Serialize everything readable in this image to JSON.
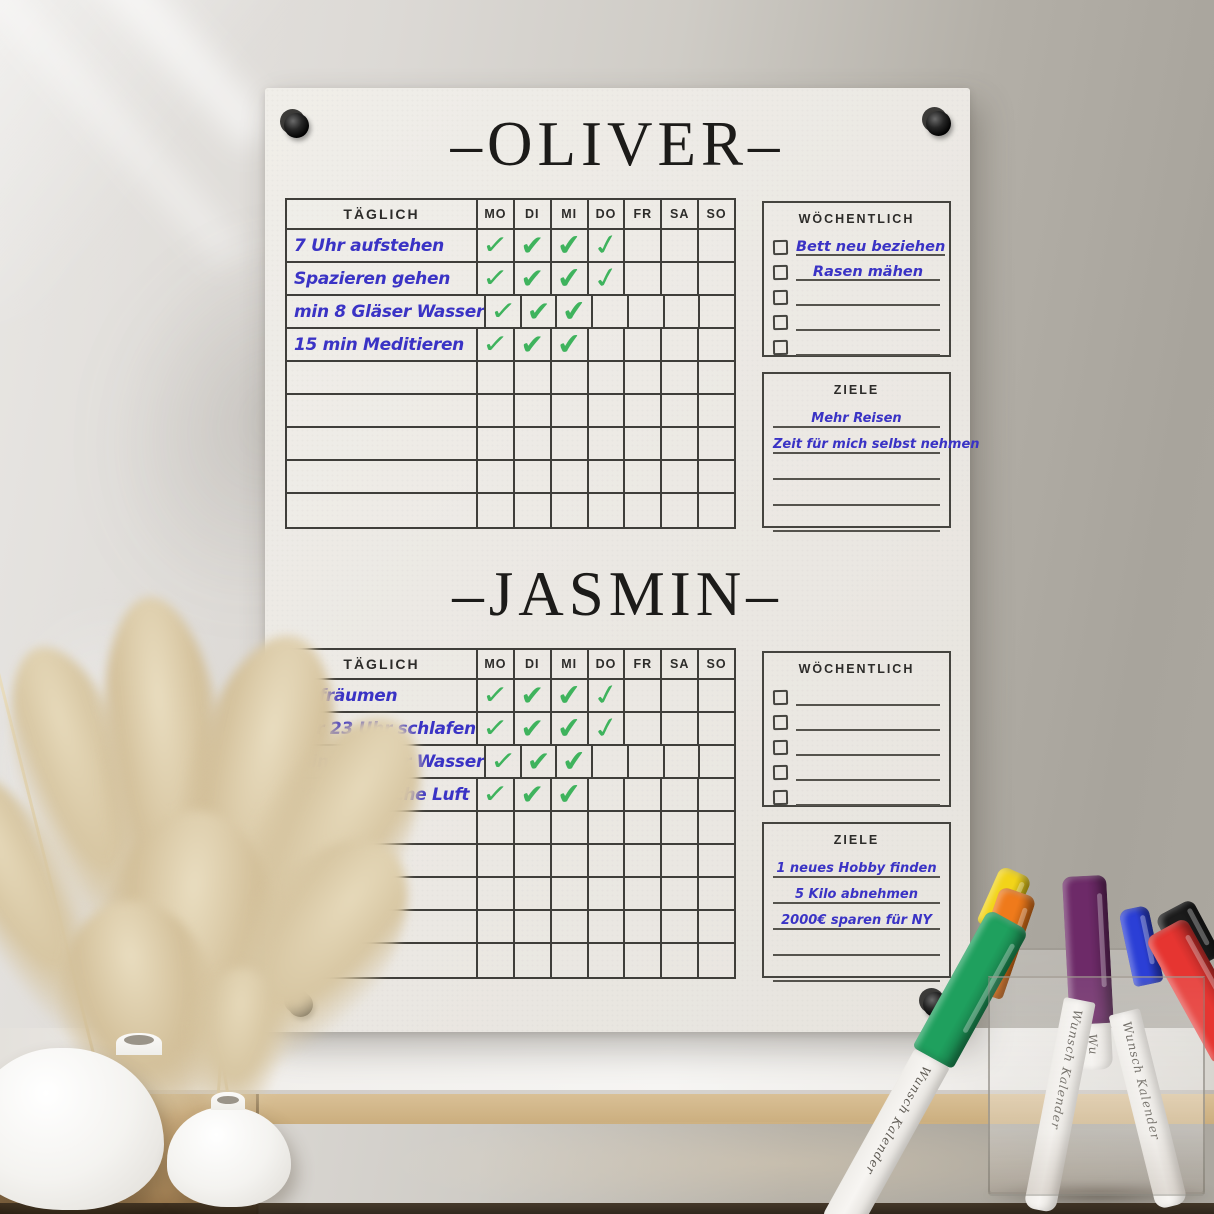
{
  "board": {
    "sections": [
      {
        "id": "oliver",
        "title": "–OLIVER–",
        "daily": {
          "header": "TÄGLICH",
          "days": [
            "MO",
            "DI",
            "MI",
            "DO",
            "FR",
            "SA",
            "SO"
          ],
          "rows": [
            {
              "task": "7 Uhr aufstehen",
              "checks": [
                1,
                1,
                1,
                1,
                0,
                0,
                0
              ]
            },
            {
              "task": "Spazieren gehen",
              "checks": [
                1,
                1,
                1,
                1,
                0,
                0,
                0
              ]
            },
            {
              "task": "min 8 Gläser Wasser",
              "checks": [
                1,
                1,
                1,
                0,
                0,
                0,
                0
              ]
            },
            {
              "task": "15 min Meditieren",
              "checks": [
                1,
                1,
                1,
                0,
                0,
                0,
                0
              ]
            }
          ],
          "empty_rows": 5
        },
        "weekly": {
          "title": "WÖCHENTLICH",
          "items": [
            "Bett neu beziehen",
            "Rasen mähen",
            "",
            "",
            ""
          ]
        },
        "goals": {
          "title": "ZIELE",
          "items": [
            "Mehr Reisen",
            "Zeit für mich selbst nehmen",
            "",
            "",
            ""
          ]
        }
      },
      {
        "id": "jasmin",
        "title": "–JASMIN–",
        "daily": {
          "header": "TÄGLICH",
          "days": [
            "MO",
            "DI",
            "MI",
            "DO",
            "FR",
            "SA",
            "SO"
          ],
          "rows": [
            {
              "task": "Aufräumen",
              "checks": [
                1,
                1,
                1,
                1,
                0,
                0,
                0
              ]
            },
            {
              "task": "vor 23 Uhr schlafen",
              "checks": [
                1,
                1,
                1,
                1,
                0,
                0,
                0
              ]
            },
            {
              "task": "min 8 Gläser Wasser",
              "checks": [
                1,
                1,
                1,
                0,
                0,
                0,
                0
              ]
            },
            {
              "task": "30 min frische Luft",
              "checks": [
                1,
                1,
                1,
                0,
                0,
                0,
                0
              ]
            }
          ],
          "empty_rows": 5
        },
        "weekly": {
          "title": "WÖCHENTLICH",
          "items": [
            "",
            "",
            "",
            "",
            ""
          ]
        },
        "goals": {
          "title": "ZIELE",
          "items": [
            "1 neues Hobby finden",
            "5 Kilo abnehmen",
            "2000€ sparen für NY",
            "",
            ""
          ]
        }
      }
    ]
  },
  "colors": {
    "handwriting_blue": "#3a33c5",
    "check_green": "#3fb35d",
    "table_line": "#3f3e3a",
    "title_black": "#1c1b19"
  },
  "decor": {
    "marker_label": "Wunsch Kalender",
    "markers": [
      {
        "name": "yellow-marker",
        "cap": "#f2d419"
      },
      {
        "name": "orange-marker",
        "cap": "#ef7a1b"
      },
      {
        "name": "purple-marker",
        "cap": "#6d2a68"
      },
      {
        "name": "blue-marker",
        "cap": "#2b3fd6"
      },
      {
        "name": "black-marker",
        "cap": "#1c1c1c"
      },
      {
        "name": "green-marker",
        "cap": "#1fa05e"
      },
      {
        "name": "red-marker",
        "cap": "#e63531"
      },
      {
        "name": "white-marker-1",
        "cap": null
      },
      {
        "name": "white-marker-2",
        "cap": null
      }
    ]
  }
}
